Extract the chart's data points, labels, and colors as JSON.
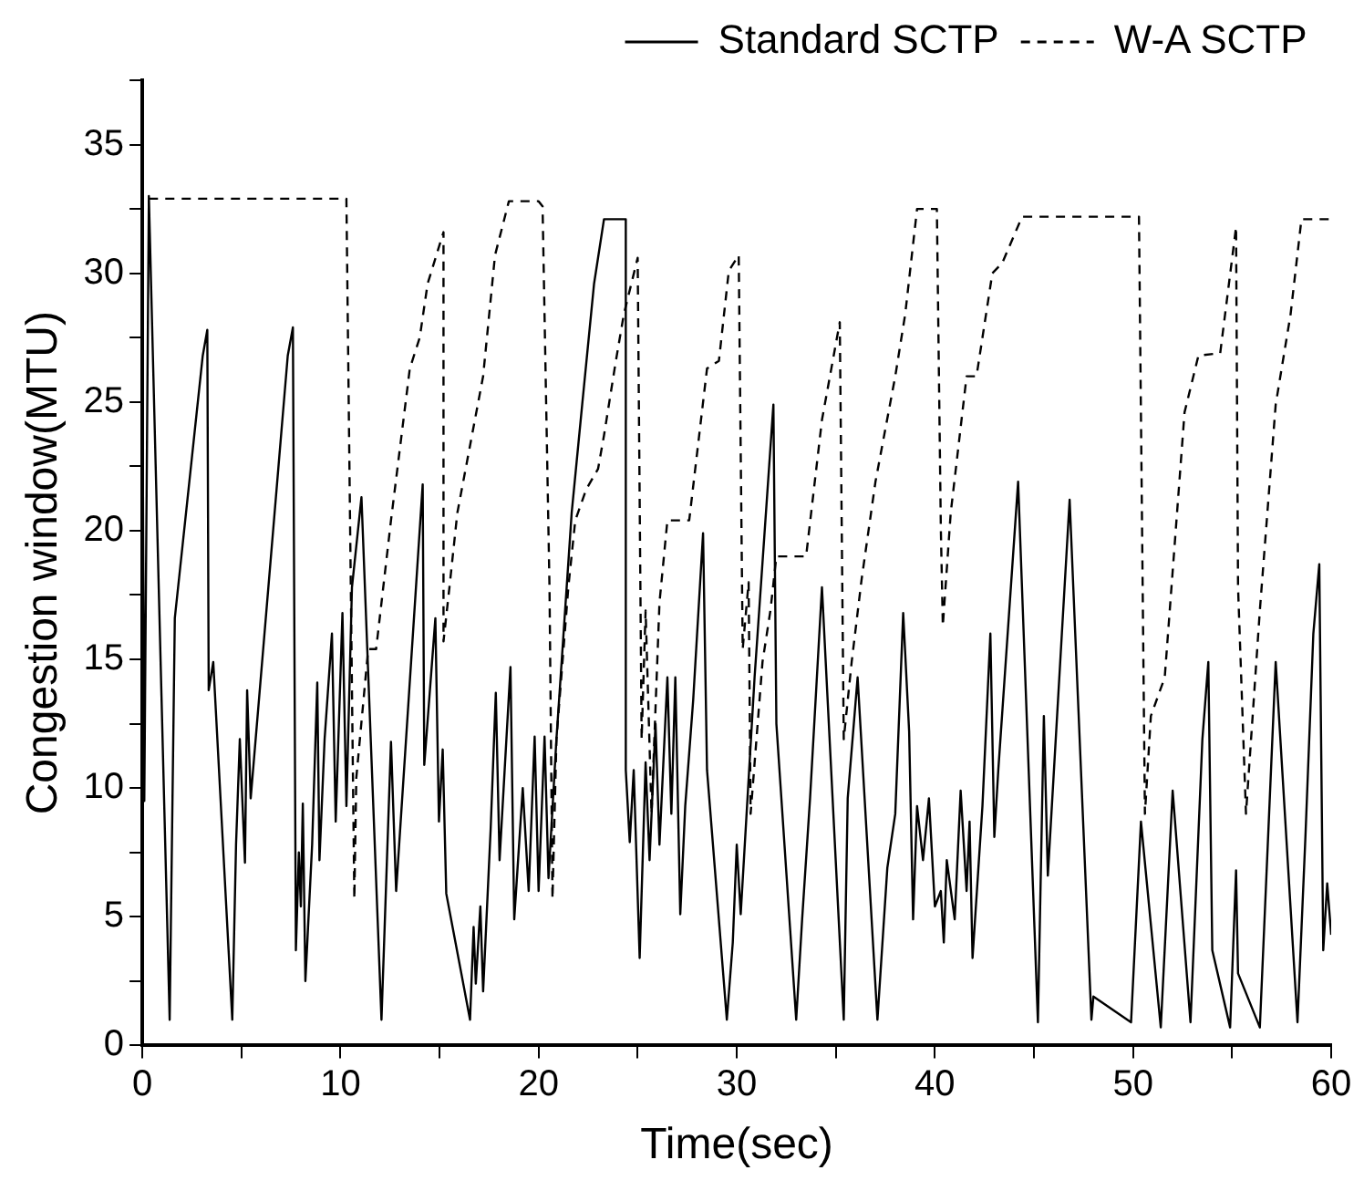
{
  "chart_data": {
    "type": "line",
    "xlabel": "Time(sec)",
    "ylabel": "Congestion window(MTU)",
    "xlim": [
      0,
      60
    ],
    "ylim": [
      0,
      37.5
    ],
    "xticks": [
      0,
      {
        "value": 5,
        "label": null
      },
      10,
      {
        "value": 15,
        "label": null
      },
      20,
      {
        "value": 25,
        "label": null
      },
      30,
      {
        "value": 35,
        "label": null
      },
      40,
      {
        "value": 45,
        "label": null
      },
      50,
      {
        "value": 55,
        "label": null
      },
      60
    ],
    "yticks": [
      0,
      {
        "value": 2.5,
        "label": null
      },
      5,
      {
        "value": 7.5,
        "label": null
      },
      10,
      {
        "value": 12.5,
        "label": null
      },
      15,
      {
        "value": 17.5,
        "label": null
      },
      20,
      {
        "value": 22.5,
        "label": null
      },
      25,
      {
        "value": 27.5,
        "label": null
      },
      30,
      {
        "value": 32.5,
        "label": null
      },
      35,
      {
        "value": 37.5,
        "label": null
      }
    ],
    "grid": false,
    "legend": "top right",
    "marker": "none",
    "series": [
      {
        "name": "Standard SCTP",
        "color": "#000000",
        "line_style": "solid",
        "x": [
          0,
          0.1,
          0.33,
          1.38,
          1.64,
          3.05,
          3.28,
          3.35,
          3.58,
          4.54,
          4.73,
          4.92,
          5.18,
          5.29,
          5.47,
          7.34,
          7.6,
          7.75,
          7.9,
          8.0,
          8.1,
          8.23,
          8.57,
          8.83,
          8.94,
          9.2,
          9.57,
          9.76,
          10.1,
          10.3,
          10.58,
          11.06,
          12.07,
          12.55,
          12.81,
          14.15,
          14.23,
          14.79,
          14.97,
          15.16,
          15.34,
          16.54,
          16.72,
          16.83,
          17.06,
          17.2,
          17.58,
          17.84,
          18.03,
          18.58,
          18.77,
          19.2,
          19.5,
          19.8,
          20.0,
          20.3,
          20.5,
          20.9,
          21.67,
          22.2,
          22.8,
          23.3,
          24.4,
          24.4,
          24.6,
          24.8,
          25.1,
          25.4,
          25.6,
          25.9,
          26.1,
          26.5,
          26.7,
          26.9,
          27.15,
          27.4,
          27.8,
          28.3,
          28.5,
          29.5,
          29.8,
          30.0,
          30.2,
          30.9,
          31.85,
          32.0,
          33.0,
          33.3,
          33.7,
          34.3,
          35.4,
          35.6,
          36.1,
          37.1,
          37.6,
          38.0,
          38.4,
          38.7,
          38.9,
          39.1,
          39.4,
          39.7,
          40.0,
          40.3,
          40.45,
          40.6,
          41.0,
          41.3,
          41.6,
          41.75,
          41.9,
          42.4,
          42.8,
          43.0,
          43.2,
          44.2,
          45.2,
          45.5,
          45.7,
          46.8,
          47.9,
          48.0,
          49.9,
          50.4,
          51.4,
          52.0,
          52.9,
          53.5,
          53.8,
          54.0,
          54.9,
          55.2,
          55.3,
          56.4,
          57.2,
          58.3,
          58.7,
          59.1,
          59.4,
          59.6,
          59.8,
          60.0
        ],
        "values": [
          27.5,
          9.5,
          33,
          1.0,
          16.6,
          26.8,
          27.8,
          13.8,
          14.9,
          1.0,
          7.8,
          11.9,
          7.1,
          13.8,
          9.6,
          26.8,
          27.9,
          3.7,
          7.5,
          5.4,
          9.4,
          2.5,
          7.8,
          14.1,
          7.2,
          11.9,
          16.0,
          8.7,
          16.8,
          9.3,
          17.8,
          21.3,
          1.0,
          11.8,
          6.0,
          21.8,
          10.9,
          16.6,
          8.7,
          11.5,
          5.9,
          1.0,
          4.6,
          2.4,
          5.4,
          2.1,
          8.4,
          13.7,
          7.2,
          14.7,
          4.9,
          10,
          6,
          12,
          6,
          12,
          6.5,
          11.9,
          20.7,
          24.9,
          29.6,
          32.1,
          32.1,
          10.7,
          7.9,
          10.7,
          3.4,
          11.0,
          7.2,
          12.5,
          7.8,
          14.3,
          9.0,
          14.3,
          5.1,
          9.3,
          13.4,
          19.9,
          10.7,
          1.0,
          4.0,
          7.8,
          5.1,
          14.3,
          24.9,
          12.5,
          1.0,
          4.9,
          9.6,
          17.8,
          1.0,
          9.6,
          14.3,
          1.0,
          6.9,
          9.0,
          16.8,
          12.2,
          4.9,
          9.3,
          7.2,
          9.6,
          5.4,
          6.0,
          4.0,
          7.2,
          4.9,
          9.9,
          6.0,
          8.7,
          3.4,
          9.3,
          16.0,
          8.1,
          10.7,
          21.9,
          0.9,
          12.8,
          6.6,
          21.2,
          1.0,
          1.9,
          0.9,
          8.7,
          0.7,
          9.9,
          0.9,
          11.9,
          14.9,
          3.7,
          0.7,
          6.8,
          2.8,
          0.7,
          14.9,
          0.9,
          8.1,
          16.0,
          18.7,
          3.7,
          6.3,
          4.3
        ]
      },
      {
        "name": "W-A SCTP",
        "color": "#000000",
        "line_style": "dashed",
        "x": [
          0.33,
          10.3,
          10.7,
          10.8,
          11.4,
          11.8,
          12.55,
          13.5,
          14.0,
          14.4,
          15.2,
          15.2,
          15.5,
          15.9,
          17.2,
          17.8,
          18.5,
          20.0,
          20.2,
          20.55,
          20.7,
          20.9,
          21.5,
          21.85,
          22.4,
          23.0,
          23.3,
          23.9,
          24.3,
          25.0,
          25.2,
          25.4,
          25.7,
          26.1,
          26.5,
          27.6,
          28.5,
          29.1,
          29.6,
          30.1,
          30.3,
          30.6,
          30.7,
          31.3,
          31.7,
          32.0,
          33.5,
          34.3,
          35.2,
          35.4,
          35.8,
          36.3,
          37.0,
          38.0,
          38.5,
          39.1,
          40.0,
          40.1,
          40.3,
          40.4,
          40.8,
          41.6,
          42.1,
          42.9,
          43.4,
          44.4,
          50.3,
          50.6,
          50.9,
          51.6,
          52.6,
          53.3,
          54.4,
          55.2,
          55.3,
          55.7,
          56.4,
          57.2,
          57.95,
          58.5,
          60.0
        ],
        "values": [
          32.9,
          32.9,
          5.7,
          10.4,
          15.4,
          15.4,
          20.4,
          26.3,
          27.5,
          29.6,
          31.6,
          15.7,
          17.8,
          20.7,
          26.0,
          30.7,
          32.8,
          32.8,
          32.6,
          17.8,
          5.7,
          11.9,
          17.8,
          20.4,
          21.6,
          22.4,
          23.7,
          26.6,
          28.4,
          30.6,
          11.9,
          16.9,
          9.0,
          17.2,
          20.4,
          20.4,
          26.3,
          26.6,
          30.1,
          30.7,
          15.4,
          18.0,
          9.0,
          14.9,
          16.9,
          19.0,
          19.0,
          24.3,
          28.1,
          11.9,
          14.9,
          18.1,
          21.9,
          26.0,
          28.4,
          32.5,
          32.5,
          32.5,
          20.1,
          16.3,
          20.7,
          26.0,
          26.0,
          30.0,
          30.4,
          32.2,
          32.2,
          9.0,
          12.8,
          14.3,
          24.6,
          26.8,
          26.9,
          31.8,
          17.8,
          9.0,
          16.9,
          24.9,
          28.4,
          32.1,
          32.1
        ]
      }
    ]
  }
}
